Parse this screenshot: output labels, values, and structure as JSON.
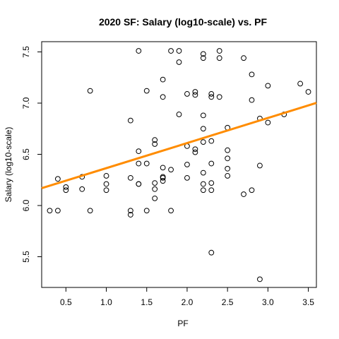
{
  "chart_data": {
    "type": "scatter",
    "title": "2020 SF: Salary (log10-scale) vs. PF",
    "xlabel": "PF",
    "ylabel": "Salary (log10-scale)",
    "xlim": [
      0.2,
      3.6
    ],
    "ylim": [
      5.2,
      7.6
    ],
    "x_ticks": [
      0.5,
      1.0,
      1.5,
      2.0,
      2.5,
      3.0,
      3.5
    ],
    "x_tick_labels": [
      "0.5",
      "1.0",
      "1.5",
      "2.0",
      "2.5",
      "3.0",
      "3.5"
    ],
    "y_ticks": [
      5.5,
      6.0,
      6.5,
      7.0,
      7.5
    ],
    "y_tick_labels": [
      "5.5",
      "6.0",
      "6.5",
      "7.0",
      "7.5"
    ],
    "grid": false,
    "point_color": "#000000",
    "line_color": "#FF8C00",
    "fit_line": {
      "intercept": 6.12,
      "slope": 0.245
    },
    "points": [
      {
        "x": 0.3,
        "y": 5.95
      },
      {
        "x": 0.4,
        "y": 5.95
      },
      {
        "x": 0.4,
        "y": 6.26
      },
      {
        "x": 0.5,
        "y": 6.18
      },
      {
        "x": 0.5,
        "y": 6.15
      },
      {
        "x": 0.7,
        "y": 6.28
      },
      {
        "x": 0.7,
        "y": 6.16
      },
      {
        "x": 0.8,
        "y": 7.12
      },
      {
        "x": 0.8,
        "y": 5.95
      },
      {
        "x": 1.0,
        "y": 6.29
      },
      {
        "x": 1.0,
        "y": 6.21
      },
      {
        "x": 1.0,
        "y": 6.15
      },
      {
        "x": 1.3,
        "y": 6.83
      },
      {
        "x": 1.3,
        "y": 6.27
      },
      {
        "x": 1.3,
        "y": 5.95
      },
      {
        "x": 1.3,
        "y": 5.91
      },
      {
        "x": 1.4,
        "y": 7.51
      },
      {
        "x": 1.4,
        "y": 6.53
      },
      {
        "x": 1.4,
        "y": 6.41
      },
      {
        "x": 1.4,
        "y": 6.21
      },
      {
        "x": 1.4,
        "y": 6.21
      },
      {
        "x": 1.5,
        "y": 7.12
      },
      {
        "x": 1.5,
        "y": 6.41
      },
      {
        "x": 1.5,
        "y": 5.95
      },
      {
        "x": 1.6,
        "y": 6.64
      },
      {
        "x": 1.6,
        "y": 6.6
      },
      {
        "x": 1.6,
        "y": 6.22
      },
      {
        "x": 1.6,
        "y": 6.16
      },
      {
        "x": 1.6,
        "y": 6.07
      },
      {
        "x": 1.7,
        "y": 7.23
      },
      {
        "x": 1.7,
        "y": 7.06
      },
      {
        "x": 1.7,
        "y": 6.37
      },
      {
        "x": 1.7,
        "y": 6.28
      },
      {
        "x": 1.7,
        "y": 6.27
      },
      {
        "x": 1.7,
        "y": 6.24
      },
      {
        "x": 1.8,
        "y": 7.51
      },
      {
        "x": 1.8,
        "y": 6.35
      },
      {
        "x": 1.8,
        "y": 5.95
      },
      {
        "x": 1.9,
        "y": 7.51
      },
      {
        "x": 1.9,
        "y": 7.4
      },
      {
        "x": 1.9,
        "y": 6.89
      },
      {
        "x": 2.0,
        "y": 7.09
      },
      {
        "x": 2.0,
        "y": 6.58
      },
      {
        "x": 2.0,
        "y": 6.4
      },
      {
        "x": 2.0,
        "y": 6.27
      },
      {
        "x": 2.1,
        "y": 7.11
      },
      {
        "x": 2.1,
        "y": 7.08
      },
      {
        "x": 2.1,
        "y": 6.55
      },
      {
        "x": 2.1,
        "y": 6.52
      },
      {
        "x": 2.2,
        "y": 7.48
      },
      {
        "x": 2.2,
        "y": 7.44
      },
      {
        "x": 2.2,
        "y": 6.88
      },
      {
        "x": 2.2,
        "y": 6.75
      },
      {
        "x": 2.2,
        "y": 6.62
      },
      {
        "x": 2.2,
        "y": 6.32
      },
      {
        "x": 2.2,
        "y": 6.21
      },
      {
        "x": 2.2,
        "y": 6.15
      },
      {
        "x": 2.3,
        "y": 7.09
      },
      {
        "x": 2.3,
        "y": 7.06
      },
      {
        "x": 2.3,
        "y": 6.63
      },
      {
        "x": 2.3,
        "y": 6.41
      },
      {
        "x": 2.3,
        "y": 6.22
      },
      {
        "x": 2.3,
        "y": 6.15
      },
      {
        "x": 2.3,
        "y": 5.54
      },
      {
        "x": 2.4,
        "y": 7.51
      },
      {
        "x": 2.4,
        "y": 7.44
      },
      {
        "x": 2.4,
        "y": 7.06
      },
      {
        "x": 2.5,
        "y": 6.76
      },
      {
        "x": 2.5,
        "y": 6.54
      },
      {
        "x": 2.5,
        "y": 6.46
      },
      {
        "x": 2.5,
        "y": 6.36
      },
      {
        "x": 2.5,
        "y": 6.29
      },
      {
        "x": 2.7,
        "y": 7.44
      },
      {
        "x": 2.7,
        "y": 6.11
      },
      {
        "x": 2.8,
        "y": 7.28
      },
      {
        "x": 2.8,
        "y": 7.03
      },
      {
        "x": 2.8,
        "y": 6.15
      },
      {
        "x": 2.9,
        "y": 6.85
      },
      {
        "x": 2.9,
        "y": 6.39
      },
      {
        "x": 2.9,
        "y": 5.28
      },
      {
        "x": 3.0,
        "y": 7.17
      },
      {
        "x": 3.0,
        "y": 6.81
      },
      {
        "x": 3.2,
        "y": 6.89
      },
      {
        "x": 3.4,
        "y": 7.19
      },
      {
        "x": 3.5,
        "y": 7.11
      }
    ]
  }
}
